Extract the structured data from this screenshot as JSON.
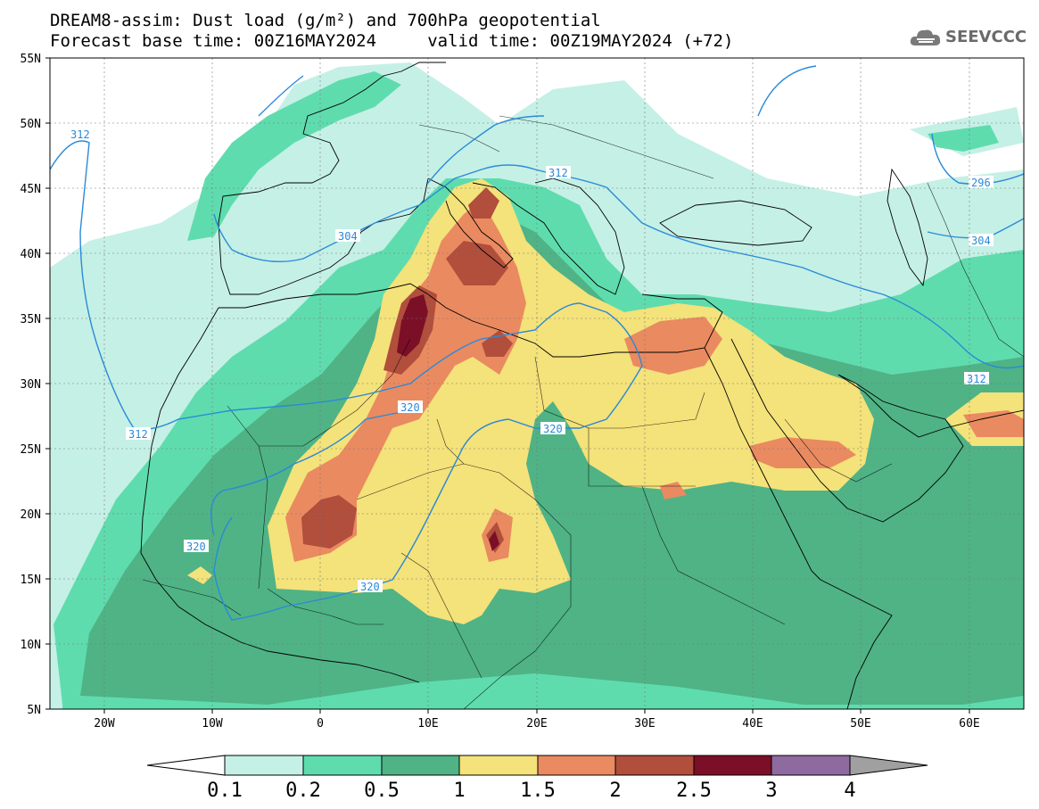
{
  "title_line1": "DREAM8-assim: Dust load (g/m²) and 700hPa geopotential",
  "title_line2": "Forecast base time: 00Z16MAY2024     valid time: 00Z19MAY2024 (+72)",
  "logo_text": "SEEVCCC",
  "lat_labels": [
    "55N",
    "50N",
    "45N",
    "40N",
    "35N",
    "30N",
    "25N",
    "20N",
    "15N",
    "10N",
    "5N"
  ],
  "lon_labels": [
    "20W",
    "10W",
    "0",
    "10E",
    "20E",
    "30E",
    "40E",
    "50E",
    "60E"
  ],
  "colorbar": {
    "levels": [
      "0.1",
      "0.2",
      "0.5",
      "1",
      "1.5",
      "2",
      "2.5",
      "3",
      "4"
    ],
    "colors": [
      "#c5f0e6",
      "#5fdcae",
      "#4fb386",
      "#f4e27a",
      "#ea8a60",
      "#b14e3c",
      "#7b0f27",
      "#8e6aa0"
    ],
    "under_color": "#ffffff",
    "over_color": "#a0a0a0"
  },
  "contour_labels": [
    "312",
    "312",
    "304",
    "304",
    "296",
    "312",
    "320",
    "320",
    "320",
    "320",
    "312"
  ],
  "colors": {
    "contour": "#2a8ad8",
    "coast": "#000000"
  }
}
